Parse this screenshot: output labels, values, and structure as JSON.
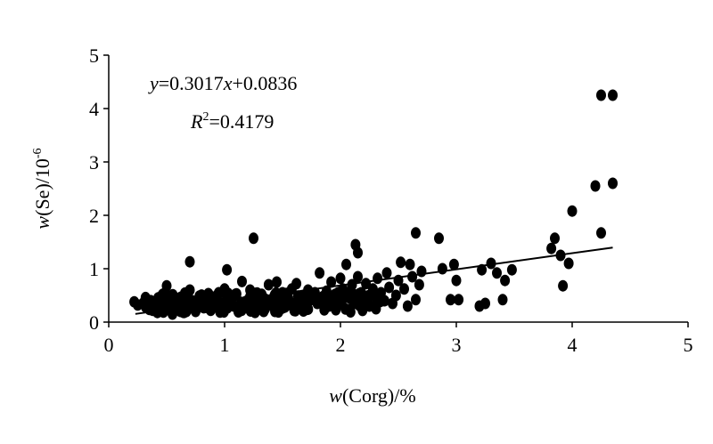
{
  "chart_data": {
    "type": "scatter",
    "title": "",
    "xlabel": {
      "italic": "w",
      "rest": "(Corg)/%"
    },
    "ylabel": {
      "italic": "w",
      "rest": "(Se)/10",
      "sup": "-6"
    },
    "xlim": [
      0,
      5
    ],
    "ylim": [
      0,
      5
    ],
    "xticks": [
      "0",
      "1",
      "2",
      "3",
      "4",
      "5"
    ],
    "yticks": [
      "0",
      "1",
      "2",
      "3",
      "4",
      "5"
    ],
    "grid": false,
    "legend": "none",
    "marker_color": "#000000",
    "annotations": {
      "equation": {
        "y": "y",
        "eq_coef": "=0.3017",
        "x": "x",
        "eq_const": "+0.0836"
      },
      "r2": {
        "r": "R",
        "sup": "2",
        "val": "=0.4179"
      }
    },
    "trendline": {
      "slope": 0.3017,
      "intercept": 0.0836,
      "x_range": [
        0.23,
        4.35
      ]
    },
    "points": [
      [
        0.22,
        0.38
      ],
      [
        0.25,
        0.32
      ],
      [
        0.3,
        0.35
      ],
      [
        0.32,
        0.28
      ],
      [
        0.35,
        0.4
      ],
      [
        0.38,
        0.22
      ],
      [
        0.4,
        0.32
      ],
      [
        0.42,
        0.18
      ],
      [
        0.45,
        0.38
      ],
      [
        0.48,
        0.3
      ],
      [
        0.5,
        0.25
      ],
      [
        0.5,
        0.68
      ],
      [
        0.52,
        0.38
      ],
      [
        0.55,
        0.15
      ],
      [
        0.58,
        0.3
      ],
      [
        0.6,
        0.42
      ],
      [
        0.62,
        0.2
      ],
      [
        0.65,
        0.35
      ],
      [
        0.68,
        0.28
      ],
      [
        0.7,
        0.6
      ],
      [
        0.7,
        1.13
      ],
      [
        0.72,
        0.4
      ],
      [
        0.75,
        0.2
      ],
      [
        0.78,
        0.33
      ],
      [
        0.8,
        0.48
      ],
      [
        0.82,
        0.27
      ],
      [
        0.85,
        0.38
      ],
      [
        0.88,
        0.22
      ],
      [
        0.9,
        0.45
      ],
      [
        0.92,
        0.3
      ],
      [
        0.95,
        0.55
      ],
      [
        0.97,
        0.35
      ],
      [
        1.0,
        0.25
      ],
      [
        1.0,
        0.62
      ],
      [
        1.02,
        0.98
      ],
      [
        1.05,
        0.42
      ],
      [
        1.08,
        0.3
      ],
      [
        1.1,
        0.5
      ],
      [
        1.12,
        0.2
      ],
      [
        1.15,
        0.76
      ],
      [
        1.18,
        0.38
      ],
      [
        1.2,
        0.28
      ],
      [
        1.22,
        0.6
      ],
      [
        1.25,
        1.57
      ],
      [
        1.27,
        0.45
      ],
      [
        1.3,
        0.32
      ],
      [
        1.32,
        0.52
      ],
      [
        1.35,
        0.25
      ],
      [
        1.38,
        0.7
      ],
      [
        1.4,
        0.4
      ],
      [
        1.42,
        0.3
      ],
      [
        1.45,
        0.75
      ],
      [
        1.48,
        0.35
      ],
      [
        1.5,
        0.55
      ],
      [
        1.52,
        0.28
      ],
      [
        1.55,
        0.45
      ],
      [
        1.58,
        0.62
      ],
      [
        1.6,
        0.35
      ],
      [
        1.62,
        0.72
      ],
      [
        1.65,
        0.4
      ],
      [
        1.68,
        0.5
      ],
      [
        1.7,
        0.3
      ],
      [
        1.72,
        0.6
      ],
      [
        1.75,
        0.42
      ],
      [
        1.78,
        0.55
      ],
      [
        1.8,
        0.35
      ],
      [
        1.82,
        0.92
      ],
      [
        1.85,
        0.48
      ],
      [
        1.88,
        0.58
      ],
      [
        1.9,
        0.3
      ],
      [
        1.92,
        0.75
      ],
      [
        1.95,
        0.42
      ],
      [
        1.98,
        0.55
      ],
      [
        2.0,
        0.38
      ],
      [
        2.0,
        0.82
      ],
      [
        2.02,
        0.62
      ],
      [
        2.05,
        1.08
      ],
      [
        2.08,
        0.45
      ],
      [
        2.1,
        0.7
      ],
      [
        2.12,
        0.35
      ],
      [
        2.13,
        1.45
      ],
      [
        2.15,
        1.3
      ],
      [
        2.15,
        0.85
      ],
      [
        2.18,
        0.55
      ],
      [
        2.2,
        0.4
      ],
      [
        2.22,
        0.72
      ],
      [
        2.25,
        0.3
      ],
      [
        2.28,
        0.62
      ],
      [
        2.3,
        0.48
      ],
      [
        2.32,
        0.82
      ],
      [
        2.35,
        0.55
      ],
      [
        2.38,
        0.4
      ],
      [
        2.4,
        0.92
      ],
      [
        2.42,
        0.65
      ],
      [
        2.45,
        0.35
      ],
      [
        2.48,
        0.5
      ],
      [
        2.5,
        0.78
      ],
      [
        2.52,
        1.12
      ],
      [
        2.55,
        0.62
      ],
      [
        2.58,
        0.3
      ],
      [
        2.6,
        1.08
      ],
      [
        2.62,
        0.85
      ],
      [
        2.65,
        1.67
      ],
      [
        2.65,
        0.42
      ],
      [
        2.68,
        0.7
      ],
      [
        2.7,
        0.95
      ],
      [
        2.85,
        1.57
      ],
      [
        2.88,
        1.0
      ],
      [
        2.95,
        0.42
      ],
      [
        2.98,
        1.08
      ],
      [
        3.0,
        0.78
      ],
      [
        3.02,
        0.42
      ],
      [
        3.2,
        0.3
      ],
      [
        3.22,
        0.98
      ],
      [
        3.25,
        0.35
      ],
      [
        3.3,
        1.1
      ],
      [
        3.35,
        0.92
      ],
      [
        3.4,
        0.42
      ],
      [
        3.42,
        0.78
      ],
      [
        3.48,
        0.98
      ],
      [
        3.82,
        1.38
      ],
      [
        3.85,
        1.57
      ],
      [
        3.9,
        1.25
      ],
      [
        3.92,
        0.68
      ],
      [
        3.97,
        1.1
      ],
      [
        4.0,
        2.08
      ],
      [
        4.2,
        2.55
      ],
      [
        4.25,
        1.67
      ],
      [
        4.25,
        4.25
      ],
      [
        4.35,
        4.25
      ],
      [
        4.35,
        2.6
      ]
    ],
    "dense_cluster": {
      "x_range": [
        0.3,
        2.4
      ],
      "y_range": [
        0.18,
        0.55
      ]
    }
  }
}
